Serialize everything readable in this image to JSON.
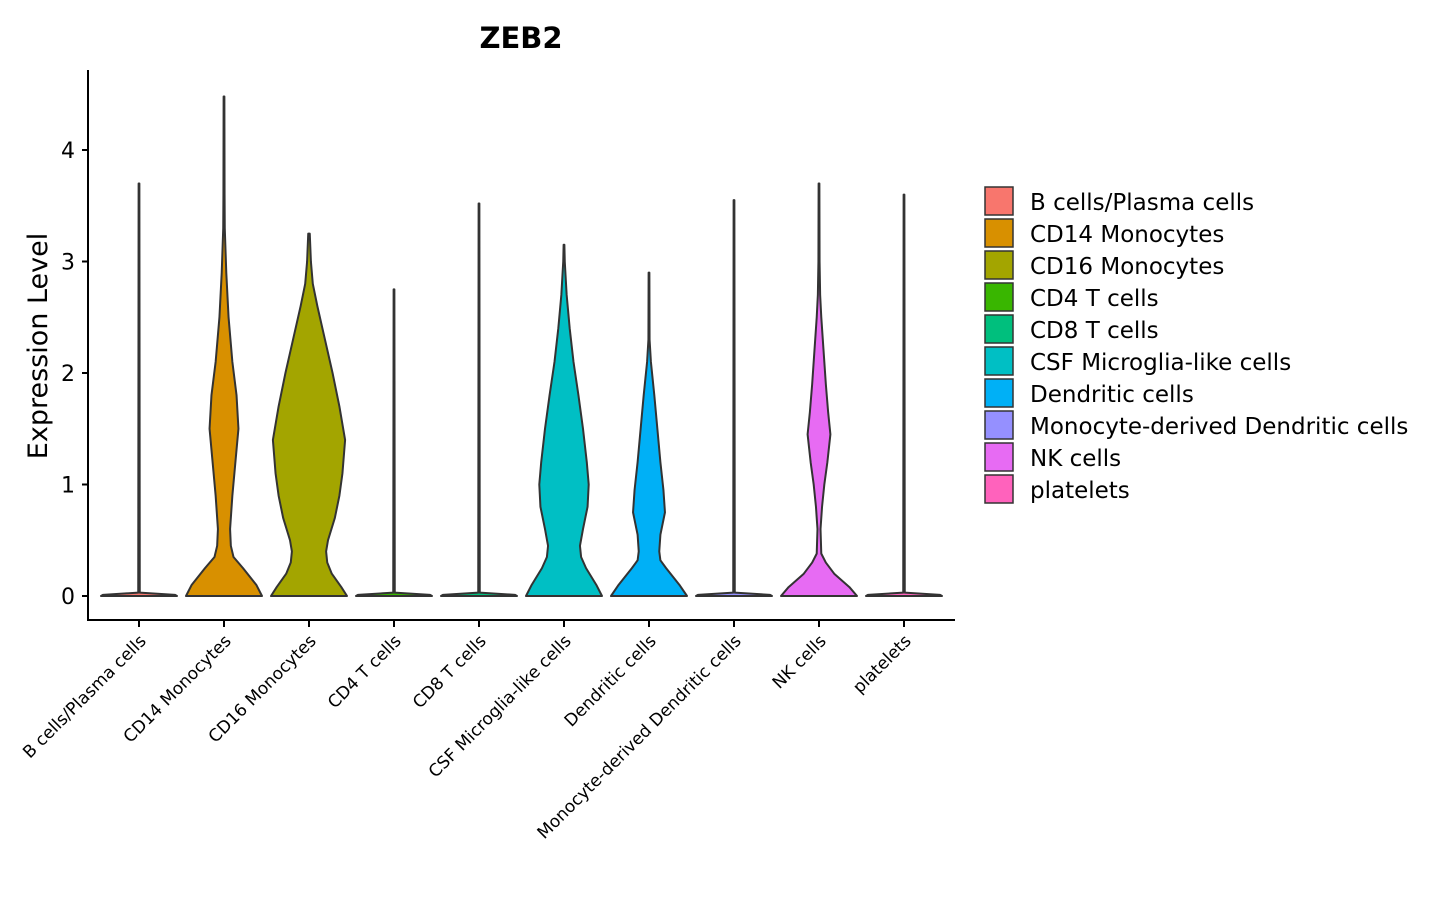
{
  "chart_data": {
    "type": "violin",
    "title": "ZEB2",
    "xlabel": "",
    "ylabel": "Expression Level",
    "ylim": [
      -0.22,
      4.7
    ],
    "yticks": [
      0,
      1,
      2,
      3,
      4
    ],
    "grid": false,
    "legend_position": "right",
    "categories": [
      "B cells/Plasma cells",
      "CD14 Monocytes",
      "CD16 Monocytes",
      "CD4 T cells",
      "CD8 T cells",
      "CSF Microglia-like cells",
      "Dendritic cells",
      "Monocyte-derived Dendritic cells",
      "NK cells",
      "platelets"
    ],
    "colors": [
      "#F8766D",
      "#D89000",
      "#A3A500",
      "#39B600",
      "#00BF7D",
      "#00BFC4",
      "#00B0F6",
      "#9590FF",
      "#E76BF3",
      "#FF62BC"
    ],
    "series": [
      {
        "name": "B cells/Plasma cells",
        "max": 3.7,
        "profile": [
          [
            0,
            1
          ],
          [
            0.01,
            0.95
          ],
          [
            0.03,
            0.02
          ],
          [
            3.7,
            0.01
          ]
        ]
      },
      {
        "name": "CD14 Monocytes",
        "max": 4.48,
        "profile": [
          [
            0,
            1
          ],
          [
            0.1,
            0.85
          ],
          [
            0.25,
            0.5
          ],
          [
            0.35,
            0.25
          ],
          [
            0.45,
            0.18
          ],
          [
            0.6,
            0.16
          ],
          [
            0.9,
            0.22
          ],
          [
            1.2,
            0.3
          ],
          [
            1.5,
            0.38
          ],
          [
            1.8,
            0.33
          ],
          [
            2.1,
            0.22
          ],
          [
            2.5,
            0.12
          ],
          [
            2.9,
            0.06
          ],
          [
            3.3,
            0.02
          ],
          [
            3.6,
            0.015
          ],
          [
            4.48,
            0.01
          ]
        ]
      },
      {
        "name": "CD16 Monocytes",
        "max": 3.25,
        "profile": [
          [
            0,
            1
          ],
          [
            0.08,
            0.85
          ],
          [
            0.2,
            0.6
          ],
          [
            0.3,
            0.48
          ],
          [
            0.4,
            0.45
          ],
          [
            0.5,
            0.5
          ],
          [
            0.7,
            0.68
          ],
          [
            0.9,
            0.8
          ],
          [
            1.1,
            0.88
          ],
          [
            1.4,
            0.95
          ],
          [
            1.7,
            0.8
          ],
          [
            2.0,
            0.62
          ],
          [
            2.3,
            0.42
          ],
          [
            2.6,
            0.22
          ],
          [
            2.8,
            0.1
          ],
          [
            3.0,
            0.05
          ],
          [
            3.25,
            0.02
          ]
        ]
      },
      {
        "name": "CD4 T cells",
        "max": 2.75,
        "profile": [
          [
            0,
            1
          ],
          [
            0.01,
            0.95
          ],
          [
            0.03,
            0.02
          ],
          [
            2.75,
            0.01
          ]
        ]
      },
      {
        "name": "CD8 T cells",
        "max": 3.52,
        "profile": [
          [
            0,
            1
          ],
          [
            0.01,
            0.95
          ],
          [
            0.03,
            0.02
          ],
          [
            3.52,
            0.01
          ]
        ]
      },
      {
        "name": "CSF Microglia-like cells",
        "max": 3.15,
        "profile": [
          [
            0,
            1
          ],
          [
            0.1,
            0.85
          ],
          [
            0.25,
            0.58
          ],
          [
            0.35,
            0.45
          ],
          [
            0.45,
            0.42
          ],
          [
            0.6,
            0.5
          ],
          [
            0.8,
            0.62
          ],
          [
            1.0,
            0.65
          ],
          [
            1.2,
            0.6
          ],
          [
            1.5,
            0.5
          ],
          [
            1.8,
            0.38
          ],
          [
            2.1,
            0.25
          ],
          [
            2.4,
            0.15
          ],
          [
            2.7,
            0.07
          ],
          [
            3.0,
            0.02
          ],
          [
            3.15,
            0.01
          ]
        ]
      },
      {
        "name": "Dendritic cells",
        "max": 2.9,
        "profile": [
          [
            0,
            1
          ],
          [
            0.1,
            0.8
          ],
          [
            0.25,
            0.45
          ],
          [
            0.32,
            0.3
          ],
          [
            0.4,
            0.27
          ],
          [
            0.55,
            0.3
          ],
          [
            0.75,
            0.42
          ],
          [
            0.95,
            0.38
          ],
          [
            1.2,
            0.3
          ],
          [
            1.5,
            0.22
          ],
          [
            1.8,
            0.14
          ],
          [
            2.1,
            0.05
          ],
          [
            2.3,
            0.015
          ],
          [
            2.9,
            0.01
          ]
        ]
      },
      {
        "name": "Monocyte-derived Dendritic cells",
        "max": 3.55,
        "profile": [
          [
            0,
            1
          ],
          [
            0.01,
            0.95
          ],
          [
            0.03,
            0.02
          ],
          [
            3.55,
            0.01
          ]
        ]
      },
      {
        "name": "NK cells",
        "max": 3.7,
        "profile": [
          [
            0,
            1
          ],
          [
            0.08,
            0.8
          ],
          [
            0.2,
            0.4
          ],
          [
            0.3,
            0.18
          ],
          [
            0.38,
            0.06
          ],
          [
            0.6,
            0.04
          ],
          [
            0.8,
            0.08
          ],
          [
            1.0,
            0.14
          ],
          [
            1.2,
            0.22
          ],
          [
            1.45,
            0.3
          ],
          [
            1.65,
            0.24
          ],
          [
            1.9,
            0.18
          ],
          [
            2.2,
            0.12
          ],
          [
            2.5,
            0.06
          ],
          [
            2.7,
            0.03
          ],
          [
            3.0,
            0.015
          ],
          [
            3.7,
            0.01
          ]
        ]
      },
      {
        "name": "platelets",
        "max": 3.6,
        "profile": [
          [
            0,
            1
          ],
          [
            0.01,
            0.95
          ],
          [
            0.03,
            0.02
          ],
          [
            3.6,
            0.01
          ]
        ]
      }
    ]
  }
}
